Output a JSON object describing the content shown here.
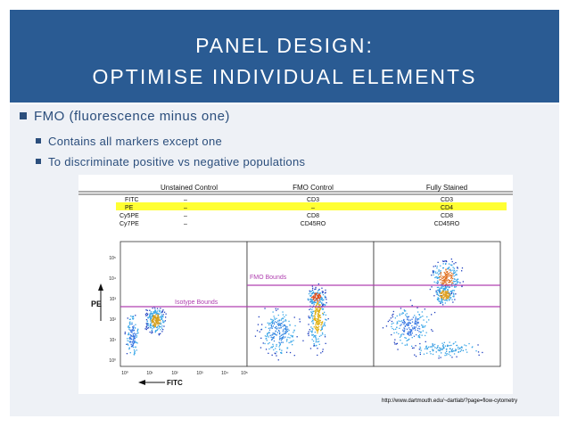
{
  "title": {
    "line1": "PANEL DESIGN:",
    "line2": "OPTIMISE INDIVIDUAL ELEMENTS"
  },
  "bullets": {
    "main": "FMO (fluorescence minus one)",
    "sub": [
      "Contains all markers except one",
      "To discriminate positive vs negative populations"
    ]
  },
  "figure": {
    "columns": [
      "Unstained Control",
      "FMO Control",
      "Fully Stained"
    ],
    "rows": [
      {
        "channel": "FITC",
        "values": [
          "–",
          "CD3",
          "CD3"
        ]
      },
      {
        "channel": "PE",
        "values": [
          "–",
          "–",
          "CD4"
        ]
      },
      {
        "channel": "Cy5PE",
        "values": [
          "–",
          "CD8",
          "CD8"
        ]
      },
      {
        "channel": "Cy7PE",
        "values": [
          "–",
          "CD45RO",
          "CD45RO"
        ]
      }
    ],
    "highlight_row_color": "#ffff33",
    "y_axis_label": "PE",
    "x_axis_label": "FITC",
    "y_ticks": [
      "10⁰",
      "10¹",
      "10²",
      "10³",
      "10⁴",
      "10⁵"
    ],
    "x_ticks": [
      "10⁰",
      "10¹",
      "10²",
      "10³",
      "10⁴",
      "10⁵"
    ],
    "gate_labels": [
      "Isotype Bounds",
      "FMO Bounds"
    ],
    "gate_color": "#b040b0"
  },
  "source": "http://www.dartmouth.edu/~dartlab/?page=flow-cytometry",
  "colors": {
    "title_band": "#2a5b93",
    "content_band": "#eef1f6",
    "text": "#2b4e7c"
  }
}
